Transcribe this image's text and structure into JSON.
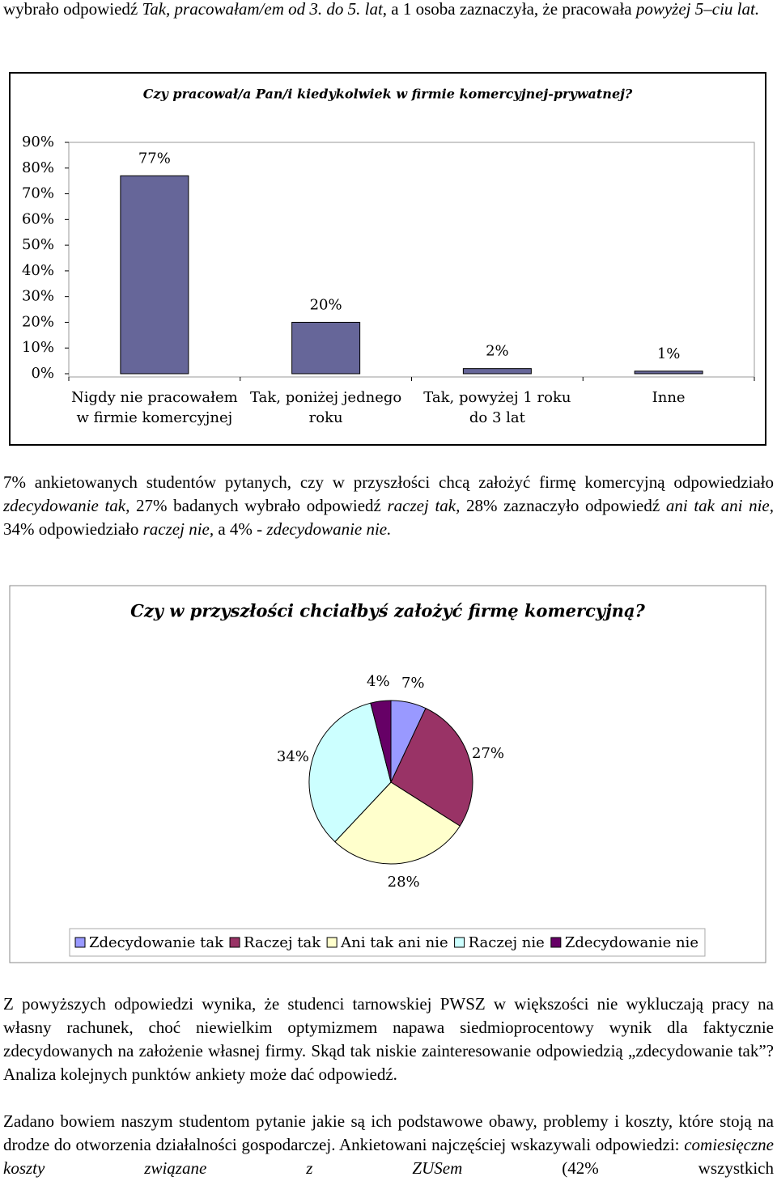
{
  "paragraphs": [
    {
      "runs": [
        {
          "text": "wybrało odpowiedź ",
          "style": "normal"
        },
        {
          "text": "Tak, pracowałam/em od 3. do 5. lat",
          "style": "italic"
        },
        {
          "text": ", a 1 osoba zaznaczyła, że pracowała ",
          "style": "normal"
        },
        {
          "text": "powyżej 5–ciu lat.",
          "style": "italic"
        }
      ]
    },
    {
      "runs": [
        {
          "text": "7% ankietowanych studentów  pytanych, czy w przyszłości chcą założyć firmę komercyjną odpowiedziało ",
          "style": "normal"
        },
        {
          "text": "zdecydowanie tak,",
          "style": "italic"
        },
        {
          "text": " 27% badanych wybrało odpowiedź ",
          "style": "normal"
        },
        {
          "text": "raczej tak,",
          "style": "italic"
        },
        {
          "text": " 28% zaznaczyło odpowiedź ",
          "style": "normal"
        },
        {
          "text": "ani tak ani nie,",
          "style": "italic"
        },
        {
          "text": " 34% odpowiedziało ",
          "style": "normal"
        },
        {
          "text": "raczej nie,",
          "style": "italic"
        },
        {
          "text": " a 4% - ",
          "style": "normal"
        },
        {
          "text": "zdecydowanie nie.",
          "style": "italic"
        }
      ]
    },
    {
      "runs": [
        {
          "text": "Z powyższych odpowiedzi wynika, że studenci tarnowskiej PWSZ w większości nie wykluczają pracy na własny rachunek, choć niewielkim optymizmem napawa siedmioprocentowy wynik dla faktycznie zdecydowanych na założenie własnej firmy. Skąd tak niskie zainteresowanie odpowiedzią „zdecydowanie tak”? Analiza kolejnych punktów ankiety może dać odpowiedź.",
          "style": "normal"
        }
      ]
    },
    {
      "runs": [
        {
          "text": "Zadano bowiem naszym studentom pytanie jakie są ich podstawowe obawy, problemy i koszty, które stoją na drodze do otworzenia działalności gospodarczej. Ankietowani najczęściej wskazywali odpowiedzi: ",
          "style": "normal"
        },
        {
          "text": "comiesięczne koszty związane z ZUSem",
          "style": "italic"
        },
        {
          "text": " (42% wszystkich",
          "style": "normal"
        }
      ]
    }
  ],
  "chart_data": [
    {
      "type": "bar",
      "title": "Czy pracował/a Pan/i kiedykolwiek w firmie komercyjnej-prywatnej?",
      "categories": [
        [
          "Nigdy nie pracowałem",
          "w firmie komercyjnej"
        ],
        [
          "Tak, poniżej jednego",
          "roku"
        ],
        [
          "Tak, powyżej 1 roku",
          "do 3 lat"
        ],
        [
          "Inne"
        ]
      ],
      "values": [
        77,
        20,
        2,
        1
      ],
      "value_labels": [
        "77%",
        "20%",
        "2%",
        "1%"
      ],
      "color": "#666699",
      "ylim": [
        0,
        90
      ],
      "yticks": [
        {
          "value": 0,
          "label": "0%"
        },
        {
          "value": 10,
          "label": "10%"
        },
        {
          "value": 20,
          "label": "20%"
        },
        {
          "value": 30,
          "label": "30%"
        },
        {
          "value": 40,
          "label": "40%"
        },
        {
          "value": 50,
          "label": "50%"
        },
        {
          "value": 60,
          "label": "60%"
        },
        {
          "value": 70,
          "label": "70%"
        },
        {
          "value": 80,
          "label": "80%"
        },
        {
          "value": 90,
          "label": "90%"
        }
      ],
      "grid": false
    },
    {
      "type": "pie",
      "title": "Czy w przyszłości chciałbyś założyć firmę komercyjną?",
      "categories": [
        "Zdecydowanie tak",
        "Raczej tak",
        "Ani tak ani nie",
        "Raczej nie",
        "Zdecydowanie nie"
      ],
      "values": [
        7,
        27,
        28,
        34,
        4
      ],
      "value_labels": [
        "7%",
        "27%",
        "28%",
        "34%",
        "4%"
      ],
      "colors": [
        "#9999FF",
        "#993366",
        "#FFFFCC",
        "#CCFFFF",
        "#660066"
      ],
      "legend": "bottom"
    }
  ]
}
